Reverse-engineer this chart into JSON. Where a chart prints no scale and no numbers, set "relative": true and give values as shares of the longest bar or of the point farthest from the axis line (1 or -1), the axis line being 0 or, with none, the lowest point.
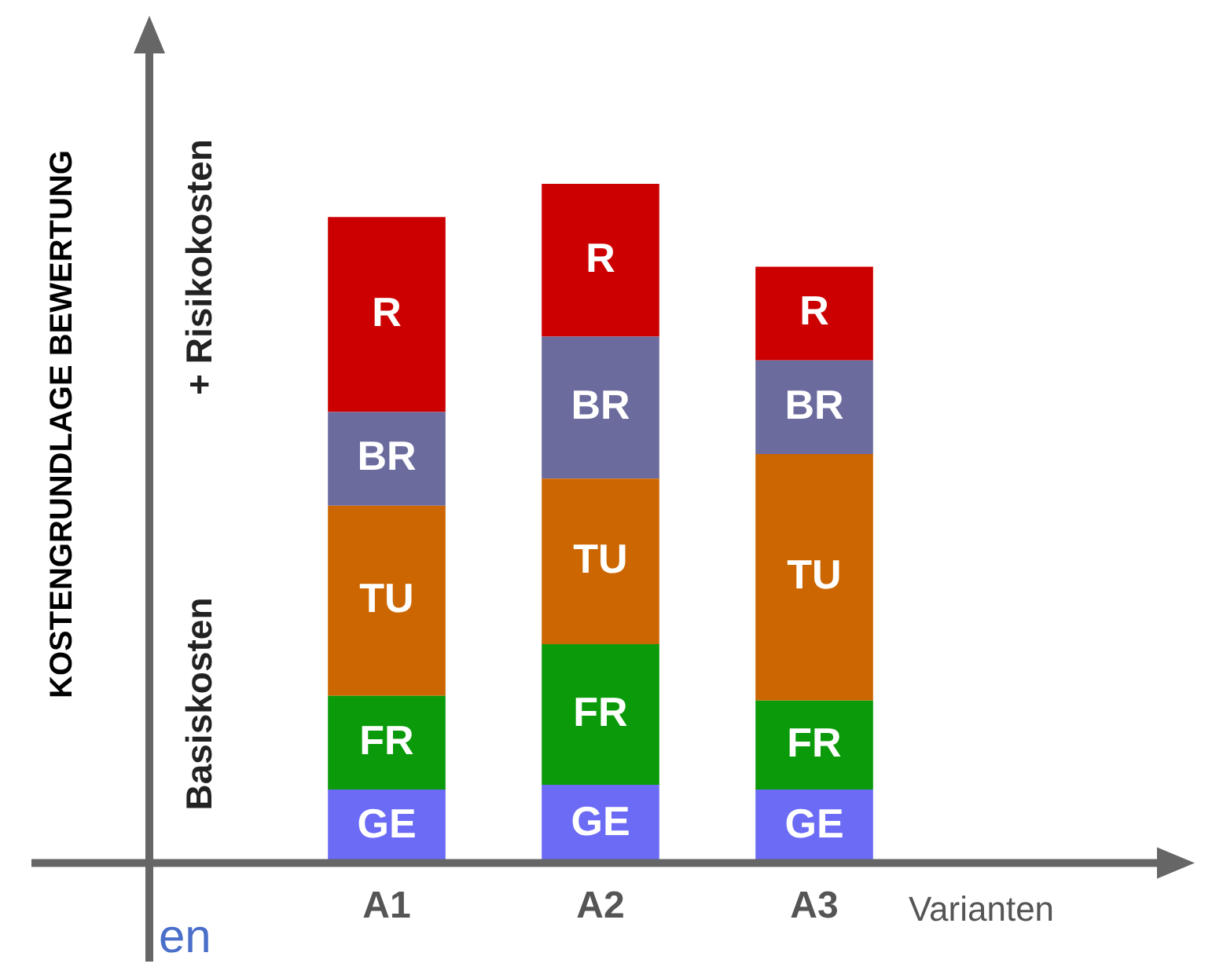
{
  "chart_data": {
    "type": "bar",
    "stacked": true,
    "relative": true,
    "xlabel": "Varianten",
    "categories": [
      "A1",
      "A2",
      "A3"
    ],
    "series": [
      {
        "name": "GE",
        "color": "#6b6bf5",
        "values": [
          0.108,
          0.115,
          0.108
        ]
      },
      {
        "name": "FR",
        "color": "#0a9a0a",
        "values": [
          0.138,
          0.207,
          0.131
        ]
      },
      {
        "name": "TU",
        "color": "#cc6600",
        "values": [
          0.28,
          0.244,
          0.363
        ]
      },
      {
        "name": "BR",
        "color": "#6b6b9e",
        "values": [
          0.138,
          0.209,
          0.138
        ]
      },
      {
        "name": "R",
        "color": "#cc0000",
        "values": [
          0.287,
          0.225,
          0.138
        ]
      }
    ],
    "grid": false,
    "legend": false,
    "annotations": [
      "Basiskosten",
      "+ Risikokosten",
      "en",
      "KOSTENGRUNDLAGE BEWERTUNG"
    ]
  }
}
